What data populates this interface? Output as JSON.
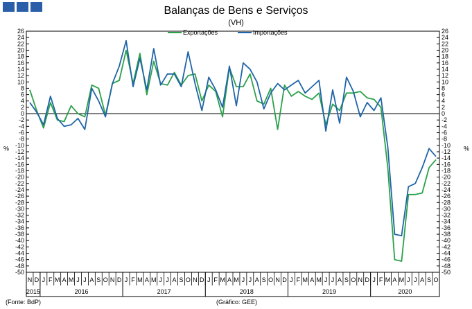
{
  "header": {
    "title": "Balanças de Bens e Serviços",
    "subtitle": "(VH)"
  },
  "footer": {
    "source": "(Fonte: BdP)",
    "credit": "(Gráfico: GEE)"
  },
  "colors": {
    "exports": "#2aa04a",
    "imports": "#1f64a8",
    "logo": "#2a5ea8"
  },
  "chart_data": {
    "type": "line",
    "title": "Balanças de Bens e Serviços",
    "subtitle": "(VH)",
    "ylabel_left": "%",
    "ylabel_right": "%",
    "ylim": [
      -50,
      26
    ],
    "ytick_step": 2,
    "legend_position": "top-center",
    "grid": false,
    "month_labels": [
      "N",
      "D",
      "J",
      "F",
      "M",
      "A",
      "M",
      "J",
      "J",
      "A",
      "S",
      "O",
      "N",
      "D",
      "J",
      "F",
      "M",
      "A",
      "M",
      "J",
      "J",
      "A",
      "S",
      "O",
      "N",
      "D",
      "J",
      "F",
      "M",
      "A",
      "M",
      "J",
      "J",
      "A",
      "S",
      "O",
      "N",
      "D",
      "J",
      "F",
      "M",
      "A",
      "M",
      "J",
      "J",
      "A",
      "S",
      "O",
      "N",
      "D",
      "J",
      "F",
      "M",
      "A",
      "M",
      "J",
      "J",
      "A",
      "S",
      "O"
    ],
    "year_labels": [
      {
        "label": "2015",
        "center_index": 0.5
      },
      {
        "label": "2016",
        "center_index": 7.5
      },
      {
        "label": "2017",
        "center_index": 19.5
      },
      {
        "label": "2018",
        "center_index": 31.5
      },
      {
        "label": "2019",
        "center_index": 43.5
      },
      {
        "label": "2020",
        "center_index": 54.5
      }
    ],
    "year_separators": [
      2,
      14,
      26,
      38,
      50
    ],
    "series": [
      {
        "name": "Exportações",
        "color": "#2aa04a",
        "values": [
          7.5,
          1.0,
          -4.5,
          3.5,
          -2.0,
          -2.5,
          2.5,
          0.0,
          -1.0,
          9.0,
          8.0,
          -0.5,
          9.5,
          10.5,
          20.0,
          9.5,
          19.0,
          6.0,
          16.5,
          9.5,
          9.0,
          13.0,
          9.0,
          12.0,
          12.5,
          4.0,
          9.0,
          7.0,
          -1.0,
          14.5,
          8.5,
          8.5,
          12.5,
          4.0,
          3.0,
          8.0,
          -5.0,
          9.0,
          5.5,
          7.0,
          5.5,
          4.5,
          6.5,
          -3.5,
          3.0,
          1.0,
          6.5,
          6.5,
          7.0,
          5.0,
          4.5,
          2.0,
          -17.0,
          -46.0,
          -46.5,
          -25.5,
          -25.5,
          -25.0,
          -17.0,
          -14.5
        ]
      },
      {
        "name": "Importações",
        "color": "#1f64a8",
        "values": [
          3.5,
          0.5,
          -3.5,
          5.5,
          -1.5,
          -4.0,
          -3.5,
          -1.5,
          -5.0,
          8.0,
          4.0,
          -1.0,
          9.5,
          15.0,
          23.0,
          8.5,
          17.5,
          7.5,
          20.5,
          9.0,
          12.5,
          12.5,
          8.5,
          19.5,
          9.5,
          1.0,
          11.5,
          7.5,
          2.0,
          15.0,
          2.5,
          16.0,
          14.0,
          10.0,
          1.5,
          6.5,
          9.5,
          7.5,
          9.0,
          10.5,
          6.5,
          8.5,
          10.5,
          -5.5,
          7.5,
          -3.0,
          11.5,
          7.0,
          -1.0,
          3.5,
          1.0,
          5.0,
          -10.5,
          -38.0,
          -38.5,
          -23.0,
          -22.0,
          -17.0,
          -11.0,
          -13.5
        ]
      }
    ]
  }
}
